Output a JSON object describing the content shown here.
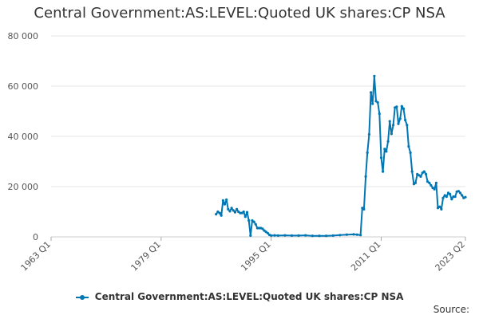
{
  "chart_data": {
    "type": "line",
    "title": "Central Government:AS:LEVEL:Quoted UK shares:CP NSA",
    "xlabel": "",
    "ylabel": "",
    "source_label": "Source:",
    "line_color": "#0077b4",
    "grid": true,
    "legend_position": "bottom",
    "ylim": [
      0,
      80000
    ],
    "y_ticks": [
      0,
      20000,
      40000,
      60000,
      80000
    ],
    "y_tick_labels": [
      "0",
      "20 000",
      "40 000",
      "60 000",
      "80 000"
    ],
    "x_range": [
      "1963 Q1",
      "2023 Q2"
    ],
    "x_ticks": [
      "1963 Q1",
      "1979 Q1",
      "1995 Q1",
      "2011 Q1",
      "2023 Q2"
    ],
    "series": [
      {
        "name": "Central Government:AS:LEVEL:Quoted UK shares:CP NSA",
        "points": [
          [
            "1987 Q1",
            9000
          ],
          [
            "1987 Q2",
            10000
          ],
          [
            "1987 Q3",
            9500
          ],
          [
            "1987 Q4",
            8500
          ],
          [
            "1988 Q1",
            14500
          ],
          [
            "1988 Q2",
            13000
          ],
          [
            "1988 Q3",
            14800
          ],
          [
            "1988 Q4",
            11000
          ],
          [
            "1989 Q1",
            10200
          ],
          [
            "1989 Q2",
            11500
          ],
          [
            "1989 Q3",
            10500
          ],
          [
            "1989 Q4",
            9800
          ],
          [
            "1990 Q1",
            11000
          ],
          [
            "1990 Q2",
            10000
          ],
          [
            "1990 Q3",
            9500
          ],
          [
            "1990 Q4",
            9500
          ],
          [
            "1991 Q1",
            10000
          ],
          [
            "1991 Q2",
            8000
          ],
          [
            "1991 Q3",
            9800
          ],
          [
            "1991 Q4",
            6500
          ],
          [
            "1992 Q1",
            500
          ],
          [
            "1992 Q2",
            6500
          ],
          [
            "1992 Q3",
            6000
          ],
          [
            "1992 Q4",
            5000
          ],
          [
            "1993 Q1",
            3500
          ],
          [
            "1993 Q2",
            3500
          ],
          [
            "1993 Q3",
            3500
          ],
          [
            "1993 Q4",
            3200
          ],
          [
            "1994 Q1",
            2500
          ],
          [
            "1994 Q2",
            2000
          ],
          [
            "1994 Q3",
            1500
          ],
          [
            "1994 Q4",
            800
          ],
          [
            "1995 Q1",
            500
          ],
          [
            "1995 Q3",
            600
          ],
          [
            "1996 Q1",
            500
          ],
          [
            "1997 Q1",
            600
          ],
          [
            "1998 Q1",
            500
          ],
          [
            "1999 Q1",
            500
          ],
          [
            "2000 Q1",
            600
          ],
          [
            "2001 Q1",
            400
          ],
          [
            "2002 Q1",
            400
          ],
          [
            "2003 Q1",
            400
          ],
          [
            "2004 Q1",
            500
          ],
          [
            "2005 Q1",
            700
          ],
          [
            "2006 Q1",
            900
          ],
          [
            "2007 Q1",
            1000
          ],
          [
            "2007 Q3",
            900
          ],
          [
            "2008 Q1",
            700
          ],
          [
            "2008 Q2",
            11500
          ],
          [
            "2008 Q3",
            11000
          ],
          [
            "2008 Q4",
            24000
          ],
          [
            "2009 Q1",
            33500
          ],
          [
            "2009 Q2",
            40800
          ],
          [
            "2009 Q3",
            57500
          ],
          [
            "2009 Q4",
            53000
          ],
          [
            "2010 Q1",
            64000
          ],
          [
            "2010 Q2",
            54000
          ],
          [
            "2010 Q3",
            53500
          ],
          [
            "2010 Q4",
            49000
          ],
          [
            "2011 Q1",
            31500
          ],
          [
            "2011 Q2",
            26000
          ],
          [
            "2011 Q3",
            35000
          ],
          [
            "2011 Q4",
            34000
          ],
          [
            "2012 Q1",
            38000
          ],
          [
            "2012 Q2",
            46000
          ],
          [
            "2012 Q3",
            41000
          ],
          [
            "2012 Q4",
            44500
          ],
          [
            "2013 Q1",
            51500
          ],
          [
            "2013 Q2",
            51800
          ],
          [
            "2013 Q3",
            45000
          ],
          [
            "2013 Q4",
            47000
          ],
          [
            "2014 Q1",
            52000
          ],
          [
            "2014 Q2",
            51000
          ],
          [
            "2014 Q3",
            46500
          ],
          [
            "2014 Q4",
            44500
          ],
          [
            "2015 Q1",
            36000
          ],
          [
            "2015 Q2",
            33500
          ],
          [
            "2015 Q3",
            26000
          ],
          [
            "2015 Q4",
            21000
          ],
          [
            "2016 Q1",
            21500
          ],
          [
            "2016 Q2",
            25000
          ],
          [
            "2016 Q3",
            24500
          ],
          [
            "2016 Q4",
            24000
          ],
          [
            "2017 Q1",
            25500
          ],
          [
            "2017 Q2",
            26000
          ],
          [
            "2017 Q3",
            25000
          ],
          [
            "2017 Q4",
            22000
          ],
          [
            "2018 Q1",
            21500
          ],
          [
            "2018 Q2",
            20500
          ],
          [
            "2018 Q3",
            19500
          ],
          [
            "2018 Q4",
            19000
          ],
          [
            "2019 Q1",
            21500
          ],
          [
            "2019 Q2",
            11500
          ],
          [
            "2019 Q3",
            12000
          ],
          [
            "2019 Q4",
            11000
          ],
          [
            "2020 Q1",
            15500
          ],
          [
            "2020 Q2",
            16500
          ],
          [
            "2020 Q3",
            16000
          ],
          [
            "2020 Q4",
            17500
          ],
          [
            "2021 Q1",
            17000
          ],
          [
            "2021 Q2",
            15000
          ],
          [
            "2021 Q3",
            16000
          ],
          [
            "2021 Q4",
            16000
          ],
          [
            "2022 Q1",
            18000
          ],
          [
            "2022 Q2",
            18200
          ],
          [
            "2022 Q3",
            17500
          ],
          [
            "2022 Q4",
            16500
          ],
          [
            "2023 Q1",
            15500
          ],
          [
            "2023 Q2",
            15800
          ]
        ]
      }
    ]
  }
}
